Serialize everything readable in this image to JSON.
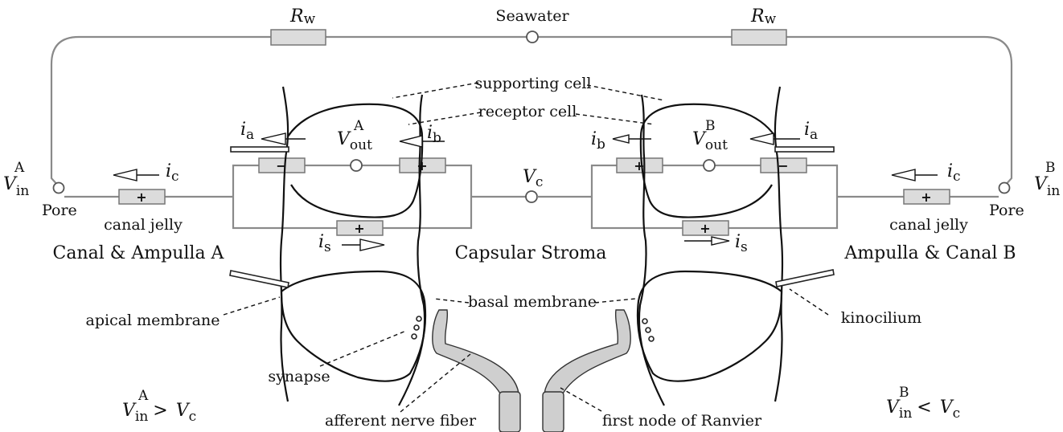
{
  "labels": {
    "seawater": "Seawater",
    "supporting_cell": "supporting cell",
    "receptor_cell": "receptor cell",
    "canal_jelly_left": "canal jelly",
    "canal_jelly_right": "canal jelly",
    "pore_left": "Pore",
    "pore_right": "Pore",
    "canal_ampulla_a": "Canal & Ampulla A",
    "ampulla_canal_b": "Ampulla & Canal B",
    "capsular_stroma": "Capsular Stroma",
    "basal_membrane": "basal membrane",
    "apical_membrane": "apical membrane",
    "kinocilium": "kinocilium",
    "synapse": "synapse",
    "afferent_nerve_fiber": "afferent nerve fiber",
    "first_node_ranvier": "first node of Ranvier"
  },
  "symbols": {
    "R": "R",
    "w": "w",
    "V": "V",
    "i": "i",
    "out": "out",
    "in": "in",
    "sub_a": "a",
    "sub_b": "b",
    "sub_c": "c",
    "sub_s": "s",
    "sup_A": "A",
    "sup_B": "B",
    "plus": "+",
    "minus": "−",
    "gt": ">",
    "lt": "<"
  }
}
